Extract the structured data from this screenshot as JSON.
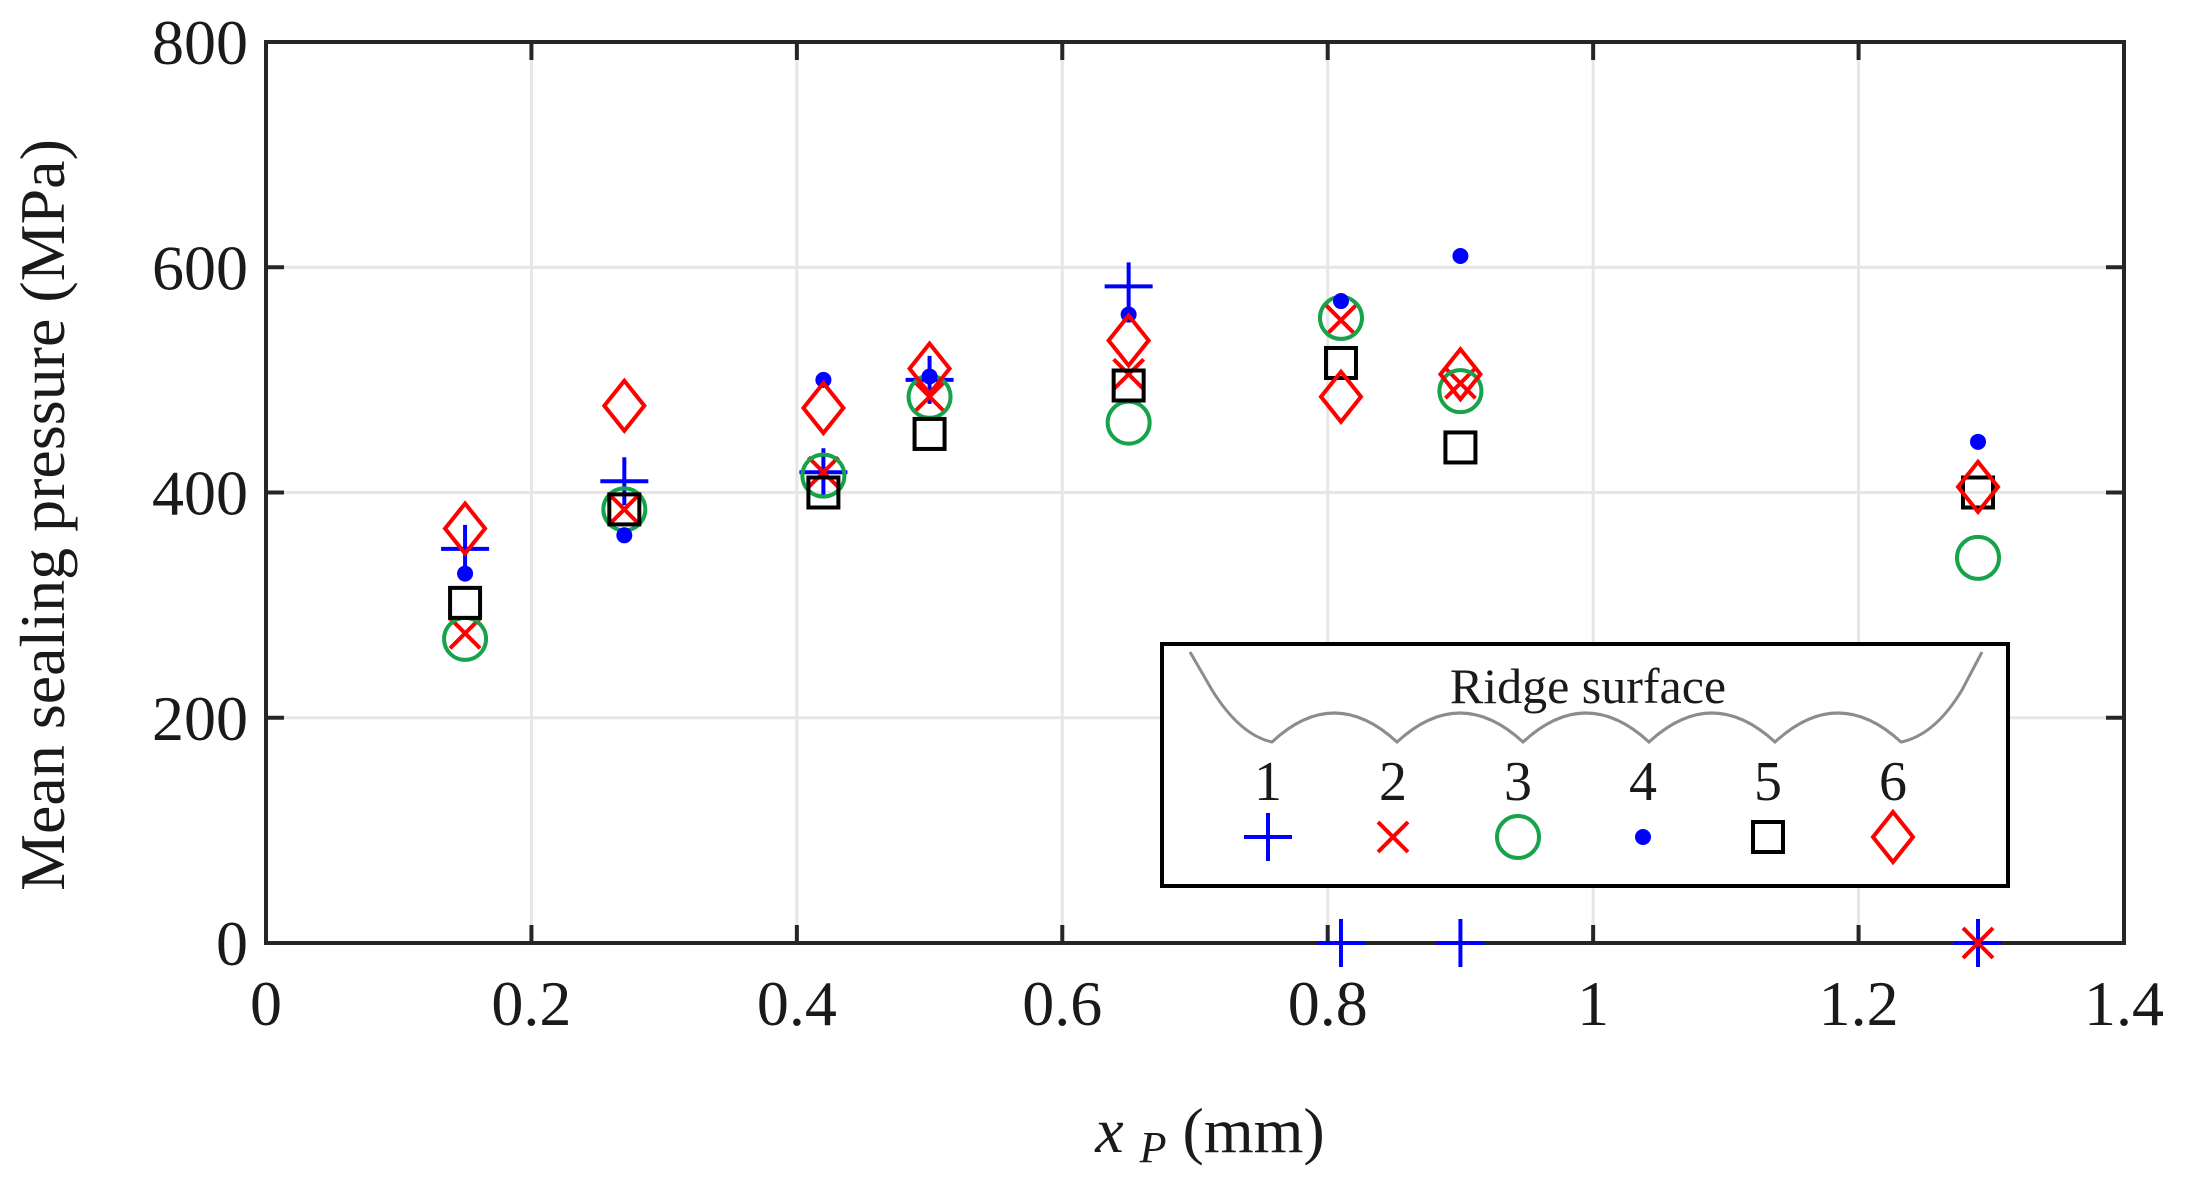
{
  "chart_data": {
    "type": "scatter",
    "title": "",
    "xlabel_var": "x",
    "xlabel_sub": "P",
    "xlabel_unit": " (mm)",
    "ylabel": "Mean sealing pressure (MPa)",
    "xlim": [
      0,
      1.4
    ],
    "ylim": [
      0,
      800
    ],
    "xticks": [
      0,
      0.2,
      0.4,
      0.6,
      0.8,
      1,
      1.2,
      1.4
    ],
    "xtick_labels": [
      "0",
      "0.2",
      "0.4",
      "0.6",
      "0.8",
      "1",
      "1.2",
      "1.4"
    ],
    "yticks": [
      0,
      200,
      400,
      600,
      800
    ],
    "ytick_labels": [
      "0",
      "200",
      "400",
      "600",
      "800"
    ],
    "grid": true,
    "legend": {
      "title": "Ridge surface",
      "position": "lower-right",
      "entries": [
        "1",
        "2",
        "3",
        "4",
        "5",
        "6"
      ]
    },
    "series": [
      {
        "name": "1",
        "marker": "plus",
        "color": "#0000ff",
        "points": [
          [
            0.15,
            350
          ],
          [
            0.27,
            410
          ],
          [
            0.42,
            418
          ],
          [
            0.5,
            500
          ],
          [
            0.65,
            583
          ],
          [
            0.81,
            0
          ],
          [
            0.9,
            0
          ],
          [
            1.29,
            0
          ]
        ]
      },
      {
        "name": "2",
        "marker": "x",
        "color": "#ff0000",
        "points": [
          [
            0.15,
            275
          ],
          [
            0.27,
            385
          ],
          [
            0.42,
            418
          ],
          [
            0.5,
            485
          ],
          [
            0.65,
            505
          ],
          [
            0.81,
            553
          ],
          [
            0.9,
            497
          ],
          [
            1.29,
            0
          ]
        ]
      },
      {
        "name": "3",
        "marker": "circle",
        "color": "#16a34a",
        "points": [
          [
            0.15,
            270
          ],
          [
            0.27,
            385
          ],
          [
            0.42,
            415
          ],
          [
            0.5,
            485
          ],
          [
            0.65,
            462
          ],
          [
            0.81,
            555
          ],
          [
            0.9,
            490
          ],
          [
            1.29,
            342
          ]
        ]
      },
      {
        "name": "4",
        "marker": "dot",
        "color": "#0000ff",
        "points": [
          [
            0.15,
            328
          ],
          [
            0.27,
            362
          ],
          [
            0.42,
            500
          ],
          [
            0.5,
            503
          ],
          [
            0.65,
            558
          ],
          [
            0.81,
            570
          ],
          [
            0.9,
            610
          ],
          [
            1.29,
            445
          ]
        ]
      },
      {
        "name": "5",
        "marker": "square",
        "color": "#000000",
        "points": [
          [
            0.15,
            302
          ],
          [
            0.27,
            385
          ],
          [
            0.42,
            400
          ],
          [
            0.5,
            452
          ],
          [
            0.65,
            495
          ],
          [
            0.81,
            515
          ],
          [
            0.9,
            440
          ],
          [
            1.29,
            400
          ]
        ]
      },
      {
        "name": "6",
        "marker": "diamond",
        "color": "#ff0000",
        "points": [
          [
            0.15,
            368
          ],
          [
            0.27,
            477
          ],
          [
            0.42,
            475
          ],
          [
            0.5,
            510
          ],
          [
            0.65,
            535
          ],
          [
            0.81,
            485
          ],
          [
            0.9,
            505
          ],
          [
            1.29,
            405
          ]
        ]
      }
    ]
  }
}
